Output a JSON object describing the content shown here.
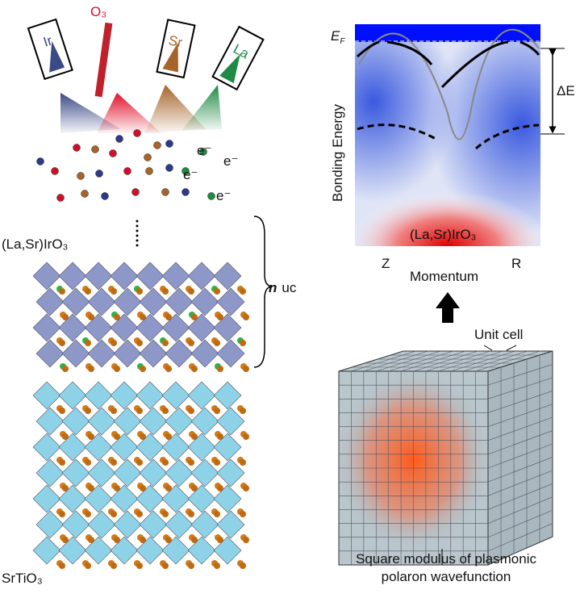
{
  "sources": [
    {
      "label": "Ir"
    },
    {
      "label": "O₃"
    },
    {
      "label": "Sr"
    },
    {
      "label": "La"
    }
  ],
  "electrons": [
    "e⁻",
    "e⁻",
    "e⁻",
    "e⁻"
  ],
  "film": {
    "label": "(La,Sr)IrO₃",
    "thickness_emphasis": "n",
    "thickness_unit": "uc"
  },
  "substrate": {
    "label": "SrTiO₃"
  },
  "arpes": {
    "fermi_symbol": "E",
    "fermi_subscript": "F",
    "gap_label": "ΔE",
    "y_label": "Bonding Energy",
    "x_ticks": [
      "Z",
      "R"
    ],
    "x_label": "Momentum",
    "sample_label": "(La,Sr)IrO₃"
  },
  "cube": {
    "unit_label": "Unit cell",
    "caption": [
      "Square modulus of plasmonic",
      "polaron wavefunction"
    ]
  }
}
